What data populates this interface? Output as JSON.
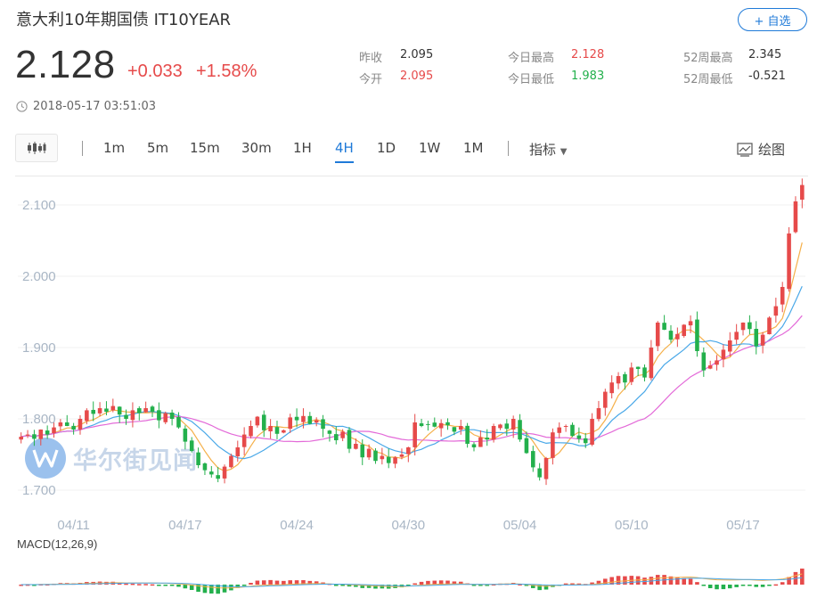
{
  "header": {
    "title": "意大利10年期国债  IT10YEAR",
    "follow_label": "+ 自选",
    "price": "2.128",
    "change": "+0.033",
    "change_pct": "+1.58%",
    "timestamp": "2018-05-17 03:51:03"
  },
  "stats": {
    "prev_close_label": "昨收",
    "prev_close": "2.095",
    "open_label": "今开",
    "open": "2.095",
    "high_label": "今日最高",
    "high": "2.128",
    "low_label": "今日最低",
    "low": "1.983",
    "wk52_high_label": "52周最高",
    "wk52_high": "2.345",
    "wk52_low_label": "52周最低",
    "wk52_low": "-0.521"
  },
  "toolbar": {
    "chart_type_icon": "candlestick-icon",
    "periods": [
      "1m",
      "5m",
      "15m",
      "30m",
      "1H",
      "4H",
      "1D",
      "1W",
      "1M"
    ],
    "active_period": "4H",
    "indicator_label": "指标",
    "draw_label": "绘图"
  },
  "watermark": {
    "text": "华尔街见闻"
  },
  "colors": {
    "up": "#e64a4a",
    "down": "#23b04c",
    "accent": "#1f7ad8",
    "ma_short": "#f5b04a",
    "ma_mid": "#49a8e8",
    "ma_long": "#e36ad8"
  },
  "chart_data": {
    "type": "candlestick",
    "ylim": [
      1.68,
      2.14
    ],
    "yticks": [
      "2.100",
      "2.000",
      "1.900",
      "1.800",
      "1.700"
    ],
    "ytick_values": [
      2.1,
      2.0,
      1.9,
      1.8,
      1.7
    ],
    "xtick_labels": [
      "04/11",
      "04/17",
      "04/24",
      "04/30",
      "05/04",
      "05/10",
      "05/17"
    ],
    "xtick_index": [
      8,
      25,
      42,
      59,
      76,
      93,
      110
    ],
    "macd_label": "MACD(12,26,9)",
    "closes": [
      1.775,
      1.778,
      1.772,
      1.785,
      1.778,
      1.788,
      1.795,
      1.79,
      1.785,
      1.8,
      1.812,
      1.807,
      1.815,
      1.81,
      1.818,
      1.806,
      1.8,
      1.812,
      1.808,
      1.815,
      1.81,
      1.798,
      1.808,
      1.8,
      1.788,
      1.768,
      1.755,
      1.735,
      1.728,
      1.722,
      1.716,
      1.733,
      1.748,
      1.76,
      1.778,
      1.79,
      1.803,
      1.784,
      1.79,
      1.779,
      1.784,
      1.802,
      1.798,
      1.804,
      1.793,
      1.798,
      1.786,
      1.779,
      1.77,
      1.782,
      1.758,
      1.765,
      1.746,
      1.758,
      1.741,
      1.748,
      1.738,
      1.746,
      1.75,
      1.76,
      1.795,
      1.79,
      1.792,
      1.789,
      1.794,
      1.791,
      1.782,
      1.79,
      1.765,
      1.76,
      1.774,
      1.771,
      1.79,
      1.792,
      1.786,
      1.8,
      1.771,
      1.752,
      1.732,
      1.718,
      1.745,
      1.781,
      1.788,
      1.79,
      1.776,
      1.772,
      1.766,
      1.8,
      1.815,
      1.838,
      1.851,
      1.86,
      1.851,
      1.872,
      1.87,
      1.858,
      1.9,
      1.935,
      1.925,
      1.911,
      1.919,
      1.932,
      1.937,
      1.895,
      1.868,
      1.875,
      1.882,
      1.897,
      1.91,
      1.922,
      1.935,
      1.926,
      1.902,
      1.918,
      1.942,
      1.958,
      1.985,
      2.06,
      2.105,
      2.128
    ]
  }
}
